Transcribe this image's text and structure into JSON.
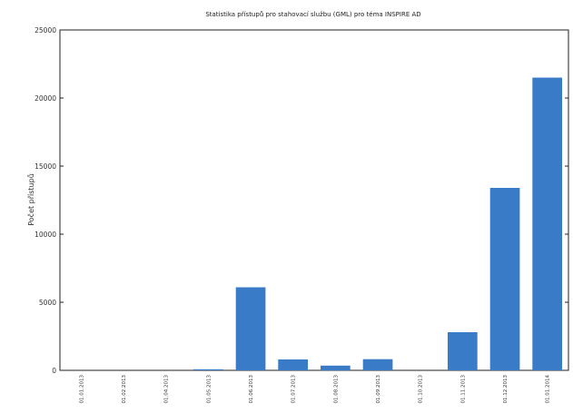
{
  "chart_data": {
    "type": "bar",
    "title": "Statistika přístupů pro stahovací službu (GML) pro téma INSPIRE AD",
    "ylabel": "Počet přístupů",
    "xlabel": "",
    "categories": [
      "01.01.2013",
      "01.02.2013",
      "01.04.2013",
      "01.05.2013",
      "01.06.2013",
      "01.07.2013",
      "01.08.2013",
      "01.09.2013",
      "01.10.2013",
      "01.11.2013",
      "01.12.2013",
      "01.01.2014"
    ],
    "values": [
      0,
      0,
      0,
      80,
      6100,
      800,
      350,
      820,
      0,
      2800,
      13400,
      21500
    ],
    "ylim": [
      0,
      25000
    ],
    "yticks": [
      "0",
      "5000",
      "10000",
      "15000",
      "20000",
      "25000"
    ],
    "color": "#3a7bc8",
    "grid": false,
    "legend": "none"
  }
}
